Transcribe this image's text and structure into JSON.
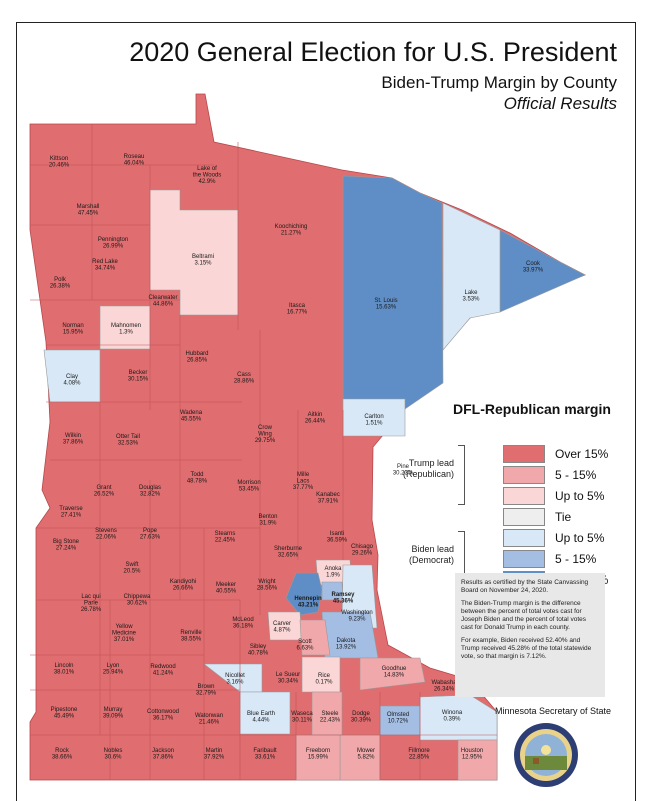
{
  "header": {
    "title": "2020 General Election for U.S. President",
    "subtitle": "Biden-Trump Margin by County",
    "subtitle2": "Official Results"
  },
  "colors": {
    "over15_r": "#e06d6f",
    "r5_15": "#f0a8aa",
    "upto5_r": "#fad6d6",
    "tie": "#eeeeee",
    "upto5_d": "#d8e8f7",
    "d5_15": "#a3bde3",
    "over15_d": "#5f8ec6"
  },
  "legend": {
    "title": "DFL-Republican margin",
    "trump_group": "Trump lead (Republican)",
    "biden_group": "Biden lead (Democrat)",
    "items": [
      {
        "label": "Over 15%",
        "color": "#e06d6f"
      },
      {
        "label": "5 - 15%",
        "color": "#f0a8aa"
      },
      {
        "label": "Up to 5%",
        "color": "#fad6d6"
      },
      {
        "label": "Tie",
        "color": "#eeeeee"
      },
      {
        "label": "Up to 5%",
        "color": "#d8e8f7"
      },
      {
        "label": "5 - 15%",
        "color": "#a3bde3"
      },
      {
        "label": "Over 15%",
        "color": "#5f8ec6"
      }
    ]
  },
  "notes": {
    "p1": "Results as certified by the State Canvassing Board on November 24, 2020.",
    "p2": "The Biden-Trump margin is the difference between the percent of total votes cast for Joseph Biden and the percent of total votes cast for Donald Trump in each county.",
    "p3": "For example, Biden received 52.40% and Trump received 45.28% of the total statewide vote, so that margin is 7.12%."
  },
  "footer": {
    "source": "Minnesota Secretary of State"
  },
  "counties": [
    {
      "name": "Kittson",
      "margin": "20.46%"
    },
    {
      "name": "Roseau",
      "margin": "46.04%"
    },
    {
      "name": "Lake of the Woods",
      "margin": "42.9%"
    },
    {
      "name": "Marshall",
      "margin": "47.45%"
    },
    {
      "name": "Koochiching",
      "margin": "21.27%"
    },
    {
      "name": "Pennington",
      "margin": "26.99%"
    },
    {
      "name": "Red Lake",
      "margin": "34.74%"
    },
    {
      "name": "Beltrami",
      "margin": "3.15%"
    },
    {
      "name": "Cook",
      "margin": "33.97%"
    },
    {
      "name": "Polk",
      "margin": "26.38%"
    },
    {
      "name": "Lake",
      "margin": "3.53%"
    },
    {
      "name": "Clearwater",
      "margin": "44.86%"
    },
    {
      "name": "St. Louis",
      "margin": "15.63%"
    },
    {
      "name": "Itasca",
      "margin": "16.77%"
    },
    {
      "name": "Norman",
      "margin": "15.95%"
    },
    {
      "name": "Mahnomen",
      "margin": "1.3%"
    },
    {
      "name": "Hubbard",
      "margin": "26.85%"
    },
    {
      "name": "Clay",
      "margin": "4.08%"
    },
    {
      "name": "Becker",
      "margin": "30.15%"
    },
    {
      "name": "Cass",
      "margin": "28.86%"
    },
    {
      "name": "Wadena",
      "margin": "45.55%"
    },
    {
      "name": "Aitkin",
      "margin": "26.44%"
    },
    {
      "name": "Carlton",
      "margin": "1.51%"
    },
    {
      "name": "Crow Wing",
      "margin": "29.75%"
    },
    {
      "name": "Wilkin",
      "margin": "37.86%"
    },
    {
      "name": "Otter Tail",
      "margin": "32.53%"
    },
    {
      "name": "Pine",
      "margin": "30.23%"
    },
    {
      "name": "Todd",
      "margin": "48.78%"
    },
    {
      "name": "Mille Lacs",
      "margin": "37.77%"
    },
    {
      "name": "Morrison",
      "margin": "53.45%"
    },
    {
      "name": "Grant",
      "margin": "26.52%"
    },
    {
      "name": "Douglas",
      "margin": "32.82%"
    },
    {
      "name": "Kanabec",
      "margin": "37.91%"
    },
    {
      "name": "Traverse",
      "margin": "27.41%"
    },
    {
      "name": "Benton",
      "margin": "31.9%"
    },
    {
      "name": "Stevens",
      "margin": "22.06%"
    },
    {
      "name": "Pope",
      "margin": "27.63%"
    },
    {
      "name": "Stearns",
      "margin": "22.45%"
    },
    {
      "name": "Isanti",
      "margin": "36.59%"
    },
    {
      "name": "Big Stone",
      "margin": "27.24%"
    },
    {
      "name": "Chisago",
      "margin": "29.26%"
    },
    {
      "name": "Sherburne",
      "margin": "32.65%"
    },
    {
      "name": "Swift",
      "margin": "20.5%"
    },
    {
      "name": "Anoka",
      "margin": "1.9%"
    },
    {
      "name": "Kandiyohi",
      "margin": "26.66%"
    },
    {
      "name": "Wright",
      "margin": "28.56%"
    },
    {
      "name": "Meeker",
      "margin": "40.55%"
    },
    {
      "name": "Hennepin",
      "margin": "43.21%"
    },
    {
      "name": "Ramsey",
      "margin": "45.36%"
    },
    {
      "name": "Lac qui Parle",
      "margin": "26.78%"
    },
    {
      "name": "Chippewa",
      "margin": "30.62%"
    },
    {
      "name": "Washington",
      "margin": "9.23%"
    },
    {
      "name": "McLeod",
      "margin": "36.18%"
    },
    {
      "name": "Carver",
      "margin": "4.87%"
    },
    {
      "name": "Yellow Medicine",
      "margin": "37.01%"
    },
    {
      "name": "Renville",
      "margin": "38.55%"
    },
    {
      "name": "Scott",
      "margin": "6.63%"
    },
    {
      "name": "Dakota",
      "margin": "13.92%"
    },
    {
      "name": "Sibley",
      "margin": "40.78%"
    },
    {
      "name": "Lincoln",
      "margin": "38.01%"
    },
    {
      "name": "Lyon",
      "margin": "25.94%"
    },
    {
      "name": "Redwood",
      "margin": "41.24%"
    },
    {
      "name": "Goodhue",
      "margin": "14.83%"
    },
    {
      "name": "Nicollet",
      "margin": "3.16%"
    },
    {
      "name": "Le Sueur",
      "margin": "30.34%"
    },
    {
      "name": "Rice",
      "margin": "0.17%"
    },
    {
      "name": "Wabasha",
      "margin": "26.34%"
    },
    {
      "name": "Brown",
      "margin": "32.79%"
    },
    {
      "name": "Pipestone",
      "margin": "45.49%"
    },
    {
      "name": "Murray",
      "margin": "39.09%"
    },
    {
      "name": "Cottonwood",
      "margin": "36.17%"
    },
    {
      "name": "Watonwan",
      "margin": "21.46%"
    },
    {
      "name": "Blue Earth",
      "margin": "4.44%"
    },
    {
      "name": "Waseca",
      "margin": "30.11%"
    },
    {
      "name": "Steele",
      "margin": "22.43%"
    },
    {
      "name": "Dodge",
      "margin": "30.39%"
    },
    {
      "name": "Olmsted",
      "margin": "10.72%"
    },
    {
      "name": "Winona",
      "margin": "0.39%"
    },
    {
      "name": "Rock",
      "margin": "38.66%"
    },
    {
      "name": "Nobles",
      "margin": "30.6%"
    },
    {
      "name": "Jackson",
      "margin": "37.86%"
    },
    {
      "name": "Martin",
      "margin": "37.92%"
    },
    {
      "name": "Faribault",
      "margin": "33.61%"
    },
    {
      "name": "Freeborn",
      "margin": "15.99%"
    },
    {
      "name": "Mower",
      "margin": "5.82%"
    },
    {
      "name": "Fillmore",
      "margin": "22.85%"
    },
    {
      "name": "Houston",
      "margin": "12.95%"
    }
  ]
}
